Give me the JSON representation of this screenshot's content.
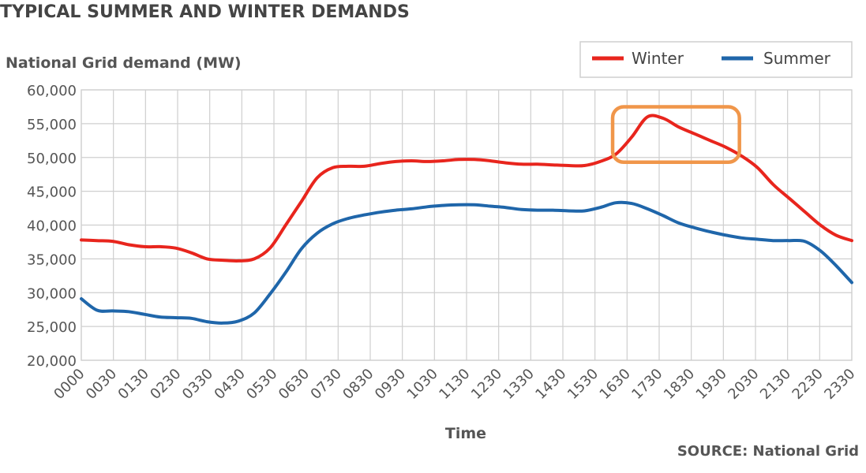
{
  "title": "TYPICAL SUMMER AND WINTER DEMANDS",
  "source": "SOURCE: National Grid",
  "chart_data": {
    "type": "line",
    "ylabel": "National Grid demand (MW)",
    "xlabel": "Time",
    "ylim": [
      20000,
      60000
    ],
    "yticks": [
      20000,
      25000,
      30000,
      35000,
      40000,
      45000,
      50000,
      55000,
      60000
    ],
    "ytick_labels": [
      "20,000",
      "25,000",
      "30,000",
      "35,000",
      "40,000",
      "45,000",
      "50,000",
      "55,000",
      "60,000"
    ],
    "x_tick_labels": [
      "0000",
      "0030",
      "0130",
      "0230",
      "0330",
      "0430",
      "0530",
      "0630",
      "0730",
      "0830",
      "0930",
      "1030",
      "1130",
      "1230",
      "1330",
      "1430",
      "1530",
      "1630",
      "1730",
      "1830",
      "1930",
      "2030",
      "2130",
      "2230",
      "2330"
    ],
    "grid": true,
    "legend_position": "top-right",
    "series": [
      {
        "name": "Winter",
        "color": "#e8251d",
        "values": [
          37800,
          37700,
          37600,
          37100,
          36800,
          36800,
          36600,
          35900,
          35000,
          34800,
          34700,
          35000,
          36600,
          40000,
          43500,
          47000,
          48500,
          48700,
          48700,
          49100,
          49400,
          49500,
          49400,
          49500,
          49700,
          49700,
          49500,
          49200,
          49000,
          49000,
          48900,
          48800,
          48800,
          49400,
          50500,
          53000,
          56000,
          55800,
          54500,
          53500,
          52500,
          51500,
          50200,
          48500,
          46000,
          44000,
          42000,
          40000,
          38500,
          37700
        ]
      },
      {
        "name": "Summer",
        "color": "#1f66aa",
        "values": [
          29100,
          27400,
          27300,
          27200,
          26800,
          26400,
          26300,
          26200,
          25700,
          25500,
          25800,
          27000,
          29800,
          33000,
          36500,
          38800,
          40200,
          41000,
          41500,
          41900,
          42200,
          42400,
          42700,
          42900,
          43000,
          43000,
          42800,
          42600,
          42300,
          42200,
          42200,
          42100,
          42100,
          42600,
          43300,
          43200,
          42400,
          41400,
          40300,
          39600,
          39000,
          38500,
          38100,
          37900,
          37700,
          37700,
          37600,
          36200,
          34000,
          31500
        ]
      }
    ]
  },
  "highlight": {
    "color": "#f0964a",
    "x_start": 16.55,
    "x_end": 20.5,
    "y_low": 49300,
    "y_high": 57500
  }
}
